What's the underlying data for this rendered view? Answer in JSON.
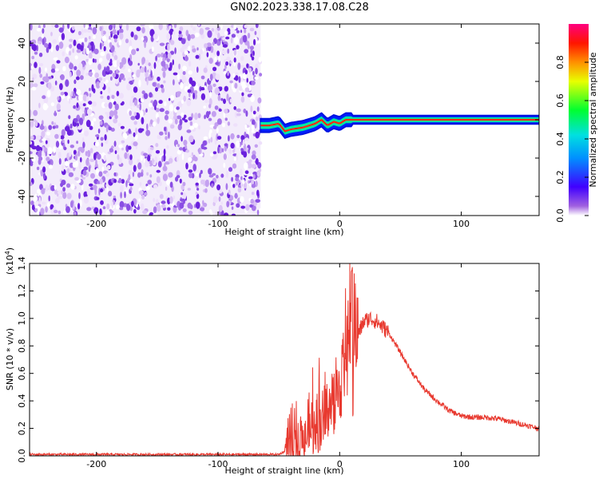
{
  "title": "GN02.2023.338.17.08.C28",
  "chart_data": [
    {
      "type": "heatmap",
      "xlabel": "Height of straight line (km)",
      "ylabel": "Frequency (Hz)",
      "xlim": [
        -255,
        164
      ],
      "ylim": [
        -50,
        50
      ],
      "xticks": [
        -200,
        -100,
        0,
        100
      ],
      "yticks": [
        -40,
        -20,
        0,
        20,
        40
      ],
      "colorbar": {
        "label": "Normalized spectral amplitude",
        "range": [
          0.0,
          1.0
        ],
        "ticks": [
          "0.0",
          "0.2",
          "0.4",
          "0.6",
          "0.8"
        ],
        "colormap": "rainbow (purple-blue-cyan-green-yellow-orange-red-magenta)"
      },
      "noise_region_end_km": -65,
      "ridge": {
        "x": [
          -65,
          -58,
          -50,
          -45,
          -40,
          -30,
          -20,
          -15,
          -10,
          -5,
          0,
          5,
          20,
          60,
          100,
          164
        ],
        "freq": [
          -3,
          -3,
          -2,
          -6,
          -5,
          -4,
          -2,
          0,
          -3,
          -1,
          -2,
          0,
          0,
          0,
          0,
          0
        ]
      }
    },
    {
      "type": "line",
      "xlabel": "Height of straight line (km)",
      "ylabel": "SNR (10 * v/v)",
      "yscale_label": "(x10",
      "yscale_exp": "4",
      "xlim": [
        -255,
        164
      ],
      "ylim": [
        0,
        1.4
      ],
      "xticks": [
        -200,
        -100,
        0,
        100
      ],
      "yticks": [
        "0.0",
        "0.2",
        "0.4",
        "0.6",
        "0.8",
        "1.0",
        "1.2",
        "1.4"
      ],
      "series": [
        {
          "color": "#e8392f",
          "x": [
            -255,
            -150,
            -50,
            -40,
            -30,
            -20,
            -10,
            0,
            5,
            10,
            12,
            15,
            20,
            25,
            30,
            40,
            50,
            60,
            70,
            80,
            90,
            100,
            110,
            120,
            130,
            140,
            150,
            164
          ],
          "y": [
            0.01,
            0.01,
            0.01,
            0.06,
            0.12,
            0.2,
            0.32,
            0.5,
            0.72,
            0.85,
            0.95,
            0.88,
            0.98,
            1.0,
            0.98,
            0.9,
            0.75,
            0.6,
            0.48,
            0.4,
            0.33,
            0.29,
            0.28,
            0.28,
            0.27,
            0.25,
            0.23,
            0.2
          ]
        }
      ]
    }
  ]
}
